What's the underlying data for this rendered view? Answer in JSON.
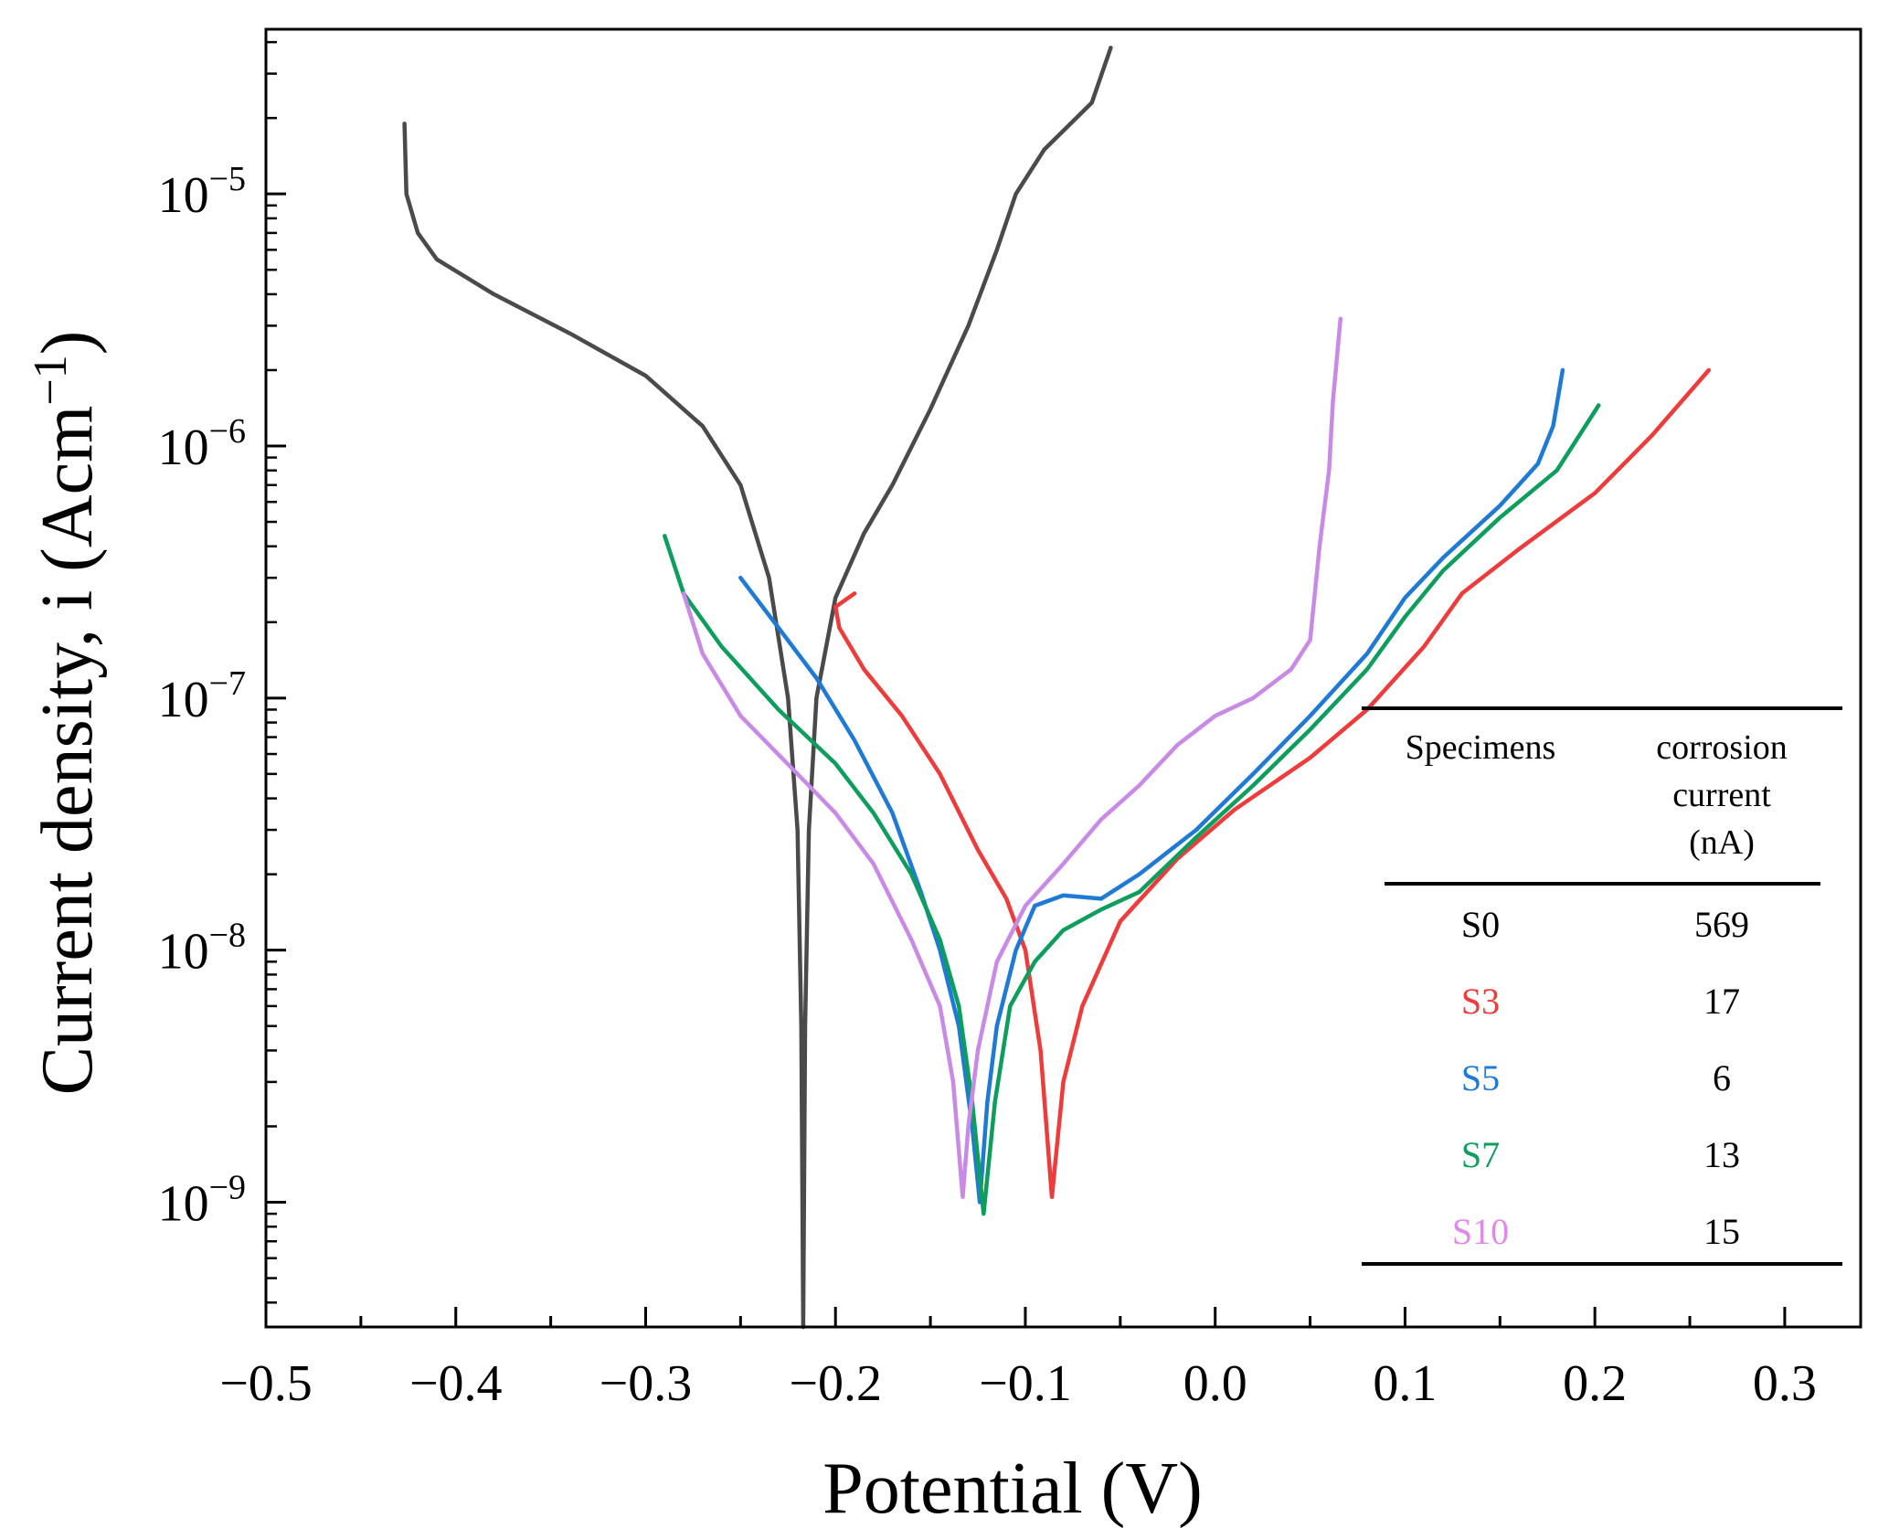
{
  "chart_data": {
    "type": "line",
    "xlabel": "Potential (V)",
    "ylabel": "Current density, i (Acm",
    "ylabel_sup": "−1",
    "ylabel_close": ")",
    "yscale": "log",
    "xlim": [
      -0.5,
      0.34
    ],
    "ylim": [
      3.2e-10,
      4.5e-05
    ],
    "x_ticks": [
      -0.5,
      -0.4,
      -0.3,
      -0.2,
      -0.1,
      0.0,
      0.1,
      0.2,
      0.3
    ],
    "x_tick_labels": [
      "−0.5",
      "−0.4",
      "−0.3",
      "−0.2",
      "−0.1",
      "0.0",
      "0.1",
      "0.2",
      "0.3"
    ],
    "y_ticks": [
      1e-09,
      1e-08,
      1e-07,
      1e-06,
      1e-05
    ],
    "y_tick_labels": [
      {
        "base": "10",
        "exp": "−9"
      },
      {
        "base": "10",
        "exp": "−8"
      },
      {
        "base": "10",
        "exp": "−7"
      },
      {
        "base": "10",
        "exp": "−6"
      },
      {
        "base": "10",
        "exp": "−5"
      }
    ],
    "grid": false,
    "series": [
      {
        "name": "S0",
        "color": "#4a4a4a",
        "points": [
          [
            -0.427,
            1.9e-05
          ],
          [
            -0.426,
            1e-05
          ],
          [
            -0.42,
            7e-06
          ],
          [
            -0.41,
            5.5e-06
          ],
          [
            -0.38,
            4e-06
          ],
          [
            -0.34,
            2.8e-06
          ],
          [
            -0.3,
            1.9e-06
          ],
          [
            -0.27,
            1.2e-06
          ],
          [
            -0.25,
            7e-07
          ],
          [
            -0.235,
            3e-07
          ],
          [
            -0.225,
            1e-07
          ],
          [
            -0.22,
            3e-08
          ],
          [
            -0.218,
            5e-09
          ],
          [
            -0.217,
            3.2e-10
          ],
          [
            -0.216,
            5e-09
          ],
          [
            -0.214,
            3e-08
          ],
          [
            -0.21,
            1e-07
          ],
          [
            -0.2,
            2.5e-07
          ],
          [
            -0.185,
            4.5e-07
          ],
          [
            -0.17,
            7e-07
          ],
          [
            -0.15,
            1.4e-06
          ],
          [
            -0.13,
            3e-06
          ],
          [
            -0.115,
            6e-06
          ],
          [
            -0.105,
            1e-05
          ],
          [
            -0.09,
            1.5e-05
          ],
          [
            -0.065,
            2.3e-05
          ],
          [
            -0.055,
            3.8e-05
          ]
        ]
      },
      {
        "name": "S3",
        "color": "#ee3b3b",
        "points": [
          [
            -0.19,
            2.6e-07
          ],
          [
            -0.2,
            2.3e-07
          ],
          [
            -0.198,
            1.9e-07
          ],
          [
            -0.185,
            1.3e-07
          ],
          [
            -0.165,
            8.5e-08
          ],
          [
            -0.145,
            5e-08
          ],
          [
            -0.125,
            2.5e-08
          ],
          [
            -0.11,
            1.6e-08
          ],
          [
            -0.1,
            1e-08
          ],
          [
            -0.092,
            4e-09
          ],
          [
            -0.086,
            1.05e-09
          ],
          [
            -0.08,
            3e-09
          ],
          [
            -0.07,
            6e-09
          ],
          [
            -0.05,
            1.3e-08
          ],
          [
            -0.02,
            2.3e-08
          ],
          [
            0.01,
            3.6e-08
          ],
          [
            0.05,
            5.8e-08
          ],
          [
            0.08,
            9e-08
          ],
          [
            0.11,
            1.6e-07
          ],
          [
            0.13,
            2.6e-07
          ],
          [
            0.16,
            3.9e-07
          ],
          [
            0.2,
            6.5e-07
          ],
          [
            0.23,
            1.1e-06
          ],
          [
            0.26,
            2e-06
          ]
        ]
      },
      {
        "name": "S5",
        "color": "#1f7ad6",
        "points": [
          [
            -0.25,
            3e-07
          ],
          [
            -0.23,
            1.9e-07
          ],
          [
            -0.21,
            1.2e-07
          ],
          [
            -0.19,
            6.8e-08
          ],
          [
            -0.17,
            3.5e-08
          ],
          [
            -0.155,
            1.7e-08
          ],
          [
            -0.145,
            1e-08
          ],
          [
            -0.135,
            5e-09
          ],
          [
            -0.128,
            2e-09
          ],
          [
            -0.124,
            1e-09
          ],
          [
            -0.12,
            2.5e-09
          ],
          [
            -0.115,
            5e-09
          ],
          [
            -0.105,
            1e-08
          ],
          [
            -0.095,
            1.5e-08
          ],
          [
            -0.08,
            1.65e-08
          ],
          [
            -0.06,
            1.6e-08
          ],
          [
            -0.04,
            2e-08
          ],
          [
            -0.01,
            3e-08
          ],
          [
            0.02,
            5e-08
          ],
          [
            0.05,
            8.5e-08
          ],
          [
            0.08,
            1.5e-07
          ],
          [
            0.1,
            2.5e-07
          ],
          [
            0.12,
            3.6e-07
          ],
          [
            0.15,
            5.8e-07
          ],
          [
            0.17,
            8.5e-07
          ],
          [
            0.178,
            1.2e-06
          ],
          [
            0.183,
            2e-06
          ]
        ]
      },
      {
        "name": "S7",
        "color": "#0d9e5e",
        "points": [
          [
            -0.29,
            4.4e-07
          ],
          [
            -0.28,
            2.6e-07
          ],
          [
            -0.26,
            1.6e-07
          ],
          [
            -0.23,
            9e-08
          ],
          [
            -0.2,
            5.5e-08
          ],
          [
            -0.18,
            3.5e-08
          ],
          [
            -0.16,
            2e-08
          ],
          [
            -0.145,
            1.1e-08
          ],
          [
            -0.135,
            6e-09
          ],
          [
            -0.128,
            2.5e-09
          ],
          [
            -0.122,
            9e-10
          ],
          [
            -0.116,
            2.5e-09
          ],
          [
            -0.108,
            6e-09
          ],
          [
            -0.095,
            9e-09
          ],
          [
            -0.08,
            1.2e-08
          ],
          [
            -0.06,
            1.45e-08
          ],
          [
            -0.04,
            1.7e-08
          ],
          [
            -0.01,
            2.8e-08
          ],
          [
            0.02,
            4.5e-08
          ],
          [
            0.05,
            7.5e-08
          ],
          [
            0.08,
            1.3e-07
          ],
          [
            0.1,
            2.1e-07
          ],
          [
            0.12,
            3.2e-07
          ],
          [
            0.15,
            5.2e-07
          ],
          [
            0.18,
            8e-07
          ],
          [
            0.202,
            1.45e-06
          ]
        ]
      },
      {
        "name": "S10",
        "color": "#c98ae6",
        "points": [
          [
            -0.28,
            2.6e-07
          ],
          [
            -0.27,
            1.5e-07
          ],
          [
            -0.25,
            8.5e-08
          ],
          [
            -0.22,
            5e-08
          ],
          [
            -0.2,
            3.5e-08
          ],
          [
            -0.18,
            2.2e-08
          ],
          [
            -0.16,
            1.1e-08
          ],
          [
            -0.145,
            6e-09
          ],
          [
            -0.138,
            3e-09
          ],
          [
            -0.133,
            1.05e-09
          ],
          [
            -0.13,
            2e-09
          ],
          [
            -0.125,
            4e-09
          ],
          [
            -0.115,
            9e-09
          ],
          [
            -0.1,
            1.5e-08
          ],
          [
            -0.08,
            2.2e-08
          ],
          [
            -0.06,
            3.3e-08
          ],
          [
            -0.04,
            4.5e-08
          ],
          [
            -0.02,
            6.5e-08
          ],
          [
            0.0,
            8.5e-08
          ],
          [
            0.02,
            1e-07
          ],
          [
            0.04,
            1.3e-07
          ],
          [
            0.05,
            1.7e-07
          ],
          [
            0.055,
            4e-07
          ],
          [
            0.06,
            8e-07
          ],
          [
            0.062,
            1.5e-06
          ],
          [
            0.066,
            3.2e-06
          ]
        ]
      }
    ],
    "inset_table": {
      "headers": [
        "Specimens",
        "corrosion current (nA)"
      ],
      "header_lines": [
        [
          "Specimens"
        ],
        [
          "corrosion",
          "current",
          "(nA)"
        ]
      ],
      "rows": [
        {
          "specimen": "S0",
          "value": "569",
          "color": "#000000"
        },
        {
          "specimen": "S3",
          "value": "17",
          "color": "#ee3b3b"
        },
        {
          "specimen": "S5",
          "value": "6",
          "color": "#1f7ad6"
        },
        {
          "specimen": "S7",
          "value": "13",
          "color": "#0d9e5e"
        },
        {
          "specimen": "S10",
          "value": "15",
          "color": "#e08ae8"
        }
      ]
    }
  }
}
